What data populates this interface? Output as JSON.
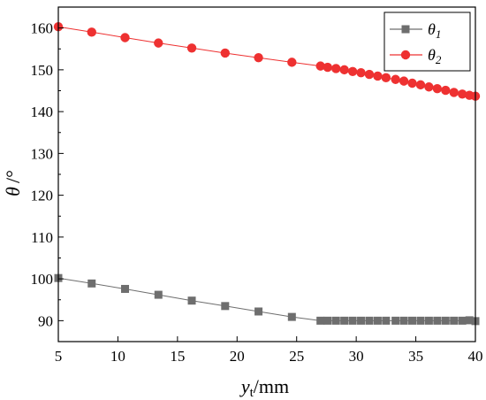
{
  "chart_data": {
    "type": "line",
    "xlabel": "y_t/mm",
    "xlabel_main": "y",
    "xlabel_sub": "t",
    "xlabel_unit": "/mm",
    "ylabel": "θ /°",
    "ylabel_symbol": "θ",
    "ylabel_unit": "/°",
    "xlim": [
      5,
      40
    ],
    "ylim": [
      85,
      165
    ],
    "xticks": [
      5,
      10,
      15,
      20,
      25,
      30,
      35,
      40
    ],
    "yticks": [
      90,
      100,
      110,
      120,
      130,
      140,
      150,
      160
    ],
    "grid": false,
    "legend_position": "top-right",
    "series": [
      {
        "name": "θ1",
        "name_symbol": "θ",
        "name_sub": "1",
        "color": "#6e6e6e",
        "marker": "square",
        "x": [
          5,
          7.8,
          10.6,
          13.4,
          16.2,
          19,
          21.8,
          24.6,
          27,
          27.6,
          28.3,
          29,
          29.7,
          30.4,
          31.1,
          31.8,
          32.5,
          33.3,
          34,
          34.7,
          35.4,
          36.1,
          36.8,
          37.5,
          38.2,
          38.9,
          39.5,
          40
        ],
        "values": [
          100.2,
          98.9,
          97.6,
          96.2,
          94.8,
          93.5,
          92.2,
          90.9,
          90,
          90,
          90,
          90,
          90,
          90,
          90,
          90,
          90,
          90,
          90,
          90,
          90,
          90,
          90,
          90,
          90,
          90,
          90.1,
          89.9
        ]
      },
      {
        "name": "θ2",
        "name_symbol": "θ",
        "name_sub": "2",
        "color": "#ee3131",
        "marker": "circle",
        "x": [
          5,
          7.8,
          10.6,
          13.4,
          16.2,
          19,
          21.8,
          24.6,
          27,
          27.6,
          28.3,
          29,
          29.7,
          30.4,
          31.1,
          31.8,
          32.5,
          33.3,
          34,
          34.7,
          35.4,
          36.1,
          36.8,
          37.5,
          38.2,
          38.9,
          39.5,
          40
        ],
        "values": [
          160.3,
          159.0,
          157.7,
          156.4,
          155.2,
          154.0,
          152.9,
          151.8,
          150.9,
          150.6,
          150.3,
          150.0,
          149.6,
          149.3,
          148.9,
          148.5,
          148.1,
          147.7,
          147.3,
          146.8,
          146.4,
          145.9,
          145.5,
          145.1,
          144.6,
          144.2,
          143.9,
          143.7
        ]
      }
    ]
  }
}
